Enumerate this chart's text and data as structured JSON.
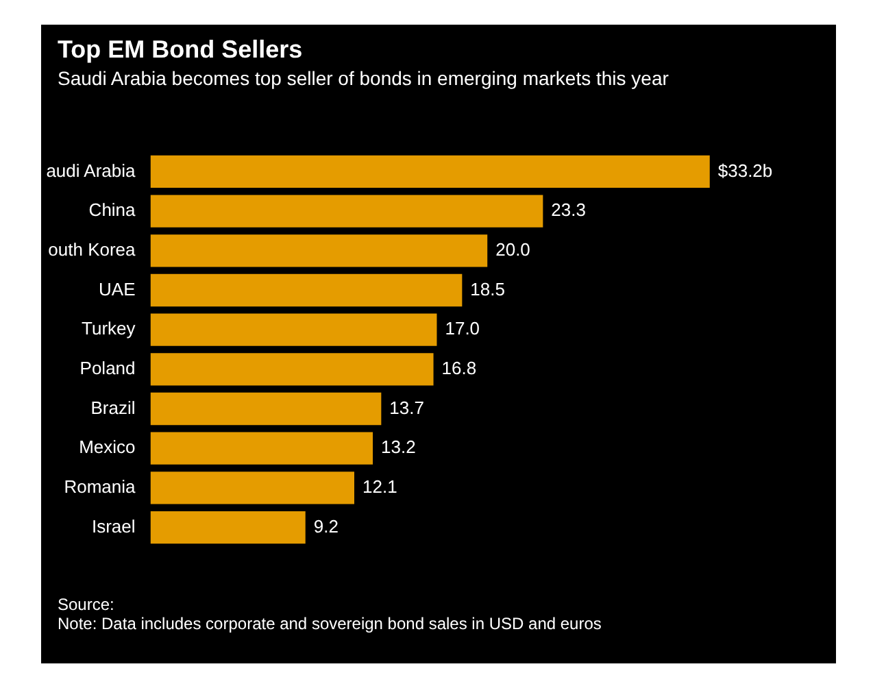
{
  "chart_data": {
    "type": "bar",
    "orientation": "horizontal",
    "title": "Top EM Bond Sellers",
    "subtitle": "Saudi Arabia becomes top seller of bonds in emerging markets this year",
    "categories": [
      "audi Arabia",
      "China",
      "outh Korea",
      "UAE",
      "Turkey",
      "Poland",
      "Brazil",
      "Mexico",
      "Romania",
      "Israel"
    ],
    "values": [
      33.2,
      23.3,
      20.0,
      18.5,
      17.0,
      16.8,
      13.7,
      13.2,
      12.1,
      9.2
    ],
    "value_labels": [
      "$33.2b",
      "23.3",
      "20.0",
      "18.5",
      "17.0",
      "16.8",
      "13.7",
      "13.2",
      "12.1",
      "9.2"
    ],
    "color": "#e59c00",
    "annotations": [
      "Source:",
      "Note: Data includes corporate and sovereign bond sales in USD and euros"
    ]
  }
}
